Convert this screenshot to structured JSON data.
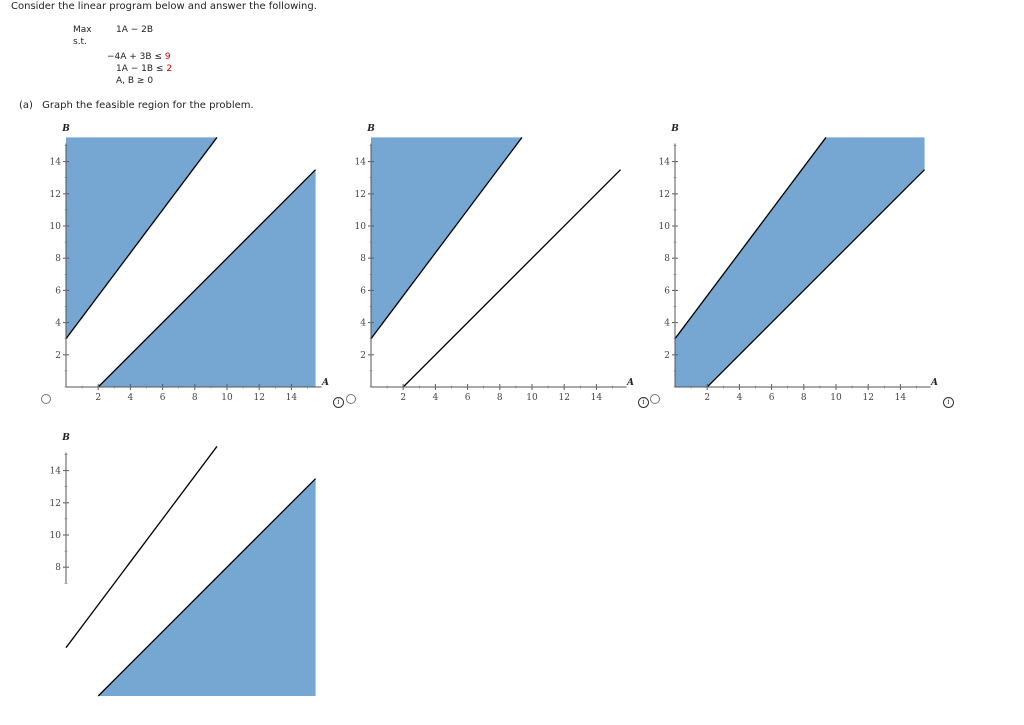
{
  "prompt": "Consider the linear program below and answer the following.",
  "lp": {
    "max_label": "Max",
    "objective": "1A − 2B",
    "st_label": "s.t.",
    "c1_lhs": "−4A + 3B ≤ ",
    "c1_rhs": "9",
    "c2_lhs": "1A − 1B ≤ ",
    "c2_rhs": "2",
    "nonneg": "A, B ≥ 0"
  },
  "part_a": {
    "label": "(a)",
    "text": "Graph the feasible region for the problem."
  },
  "axes": {
    "x_name": "A",
    "y_name": "B",
    "x_ticks": [
      "2",
      "4",
      "6",
      "8",
      "10",
      "12",
      "14"
    ],
    "y_ticks": [
      "2",
      "4",
      "6",
      "8",
      "10",
      "12",
      "14"
    ],
    "range": [
      0,
      15.5
    ]
  },
  "colors": {
    "fill": "#76a7d2",
    "line": "#000000"
  },
  "options": [
    {
      "id": "option-1",
      "shaded": [
        "above-line1",
        "below-line2"
      ],
      "y_visible_min": 0
    },
    {
      "id": "option-2",
      "shaded": [
        "above-line1"
      ],
      "y_visible_min": 0
    },
    {
      "id": "option-3",
      "shaded": [
        "between-lines"
      ],
      "y_visible_min": 0
    },
    {
      "id": "option-4",
      "shaded": [
        "below-line2"
      ],
      "y_visible_min": 7
    }
  ]
}
